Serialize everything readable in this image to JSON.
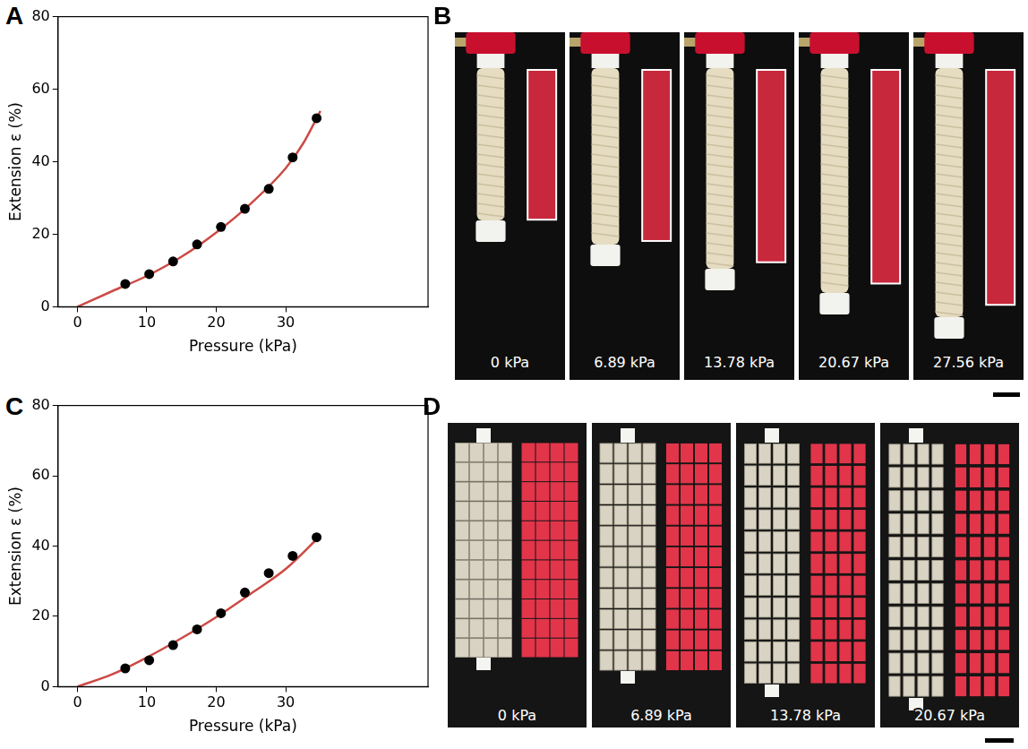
{
  "chart_data": [
    {
      "type": "scatter",
      "panel_label": "A",
      "xlabel": "Pressure (kPa)",
      "ylabel": "Extension ε (%)",
      "xlim": [
        -2.8,
        50.5
      ],
      "xticks": [
        0,
        10,
        20,
        30
      ],
      "ylim": [
        0,
        80
      ],
      "yticks": [
        0,
        20,
        40,
        60,
        80
      ],
      "grid": false,
      "series": [
        {
          "type": "scatter",
          "color": "#000000",
          "marker": "circle",
          "x": [
            6.89,
            10.34,
            13.78,
            17.23,
            20.67,
            24.12,
            27.56,
            31.0,
            34.45
          ],
          "values": [
            6.3,
            9.0,
            12.5,
            17.2,
            22.0,
            27.0,
            32.5,
            41.2,
            52.0
          ]
        },
        {
          "type": "line",
          "color": "#cc4a45",
          "line_style": "solid",
          "x": [
            0,
            5,
            10,
            15,
            20,
            25,
            30,
            32.5,
            35
          ],
          "values": [
            0,
            4.3,
            8.5,
            13.8,
            20.5,
            28.5,
            38.2,
            45.0,
            54.0
          ]
        }
      ]
    },
    {
      "type": "scatter",
      "panel_label": "C",
      "xlabel": "Pressure (kPa)",
      "ylabel": "Extension ε (%)",
      "xlim": [
        -2.8,
        50.5
      ],
      "xticks": [
        0,
        10,
        20,
        30
      ],
      "ylim": [
        0,
        80
      ],
      "yticks": [
        0,
        20,
        40,
        60,
        80
      ],
      "grid": false,
      "series": [
        {
          "type": "scatter",
          "color": "#000000",
          "marker": "circle",
          "x": [
            6.89,
            10.34,
            13.78,
            17.23,
            20.67,
            24.12,
            27.56,
            31.0,
            34.45
          ],
          "values": [
            5.2,
            7.5,
            11.8,
            16.3,
            20.9,
            26.8,
            32.3,
            37.2,
            42.5
          ]
        },
        {
          "type": "line",
          "color": "#cc4a45",
          "line_style": "solid",
          "x": [
            0,
            5,
            10,
            15,
            20,
            25,
            30,
            35
          ],
          "values": [
            0,
            3.5,
            8.3,
            13.8,
            19.8,
            26.5,
            33.5,
            43.0
          ]
        }
      ]
    }
  ],
  "photo_panels": [
    {
      "panel_label": "B",
      "frames": [
        "0 kPa",
        "6.89 kPa",
        "13.78 kPa",
        "20.67 kPa",
        "27.56 kPa"
      ]
    },
    {
      "panel_label": "D",
      "frames": [
        "0 kPa",
        "6.89 kPa",
        "13.78 kPa",
        "20.67 kPa"
      ]
    }
  ]
}
